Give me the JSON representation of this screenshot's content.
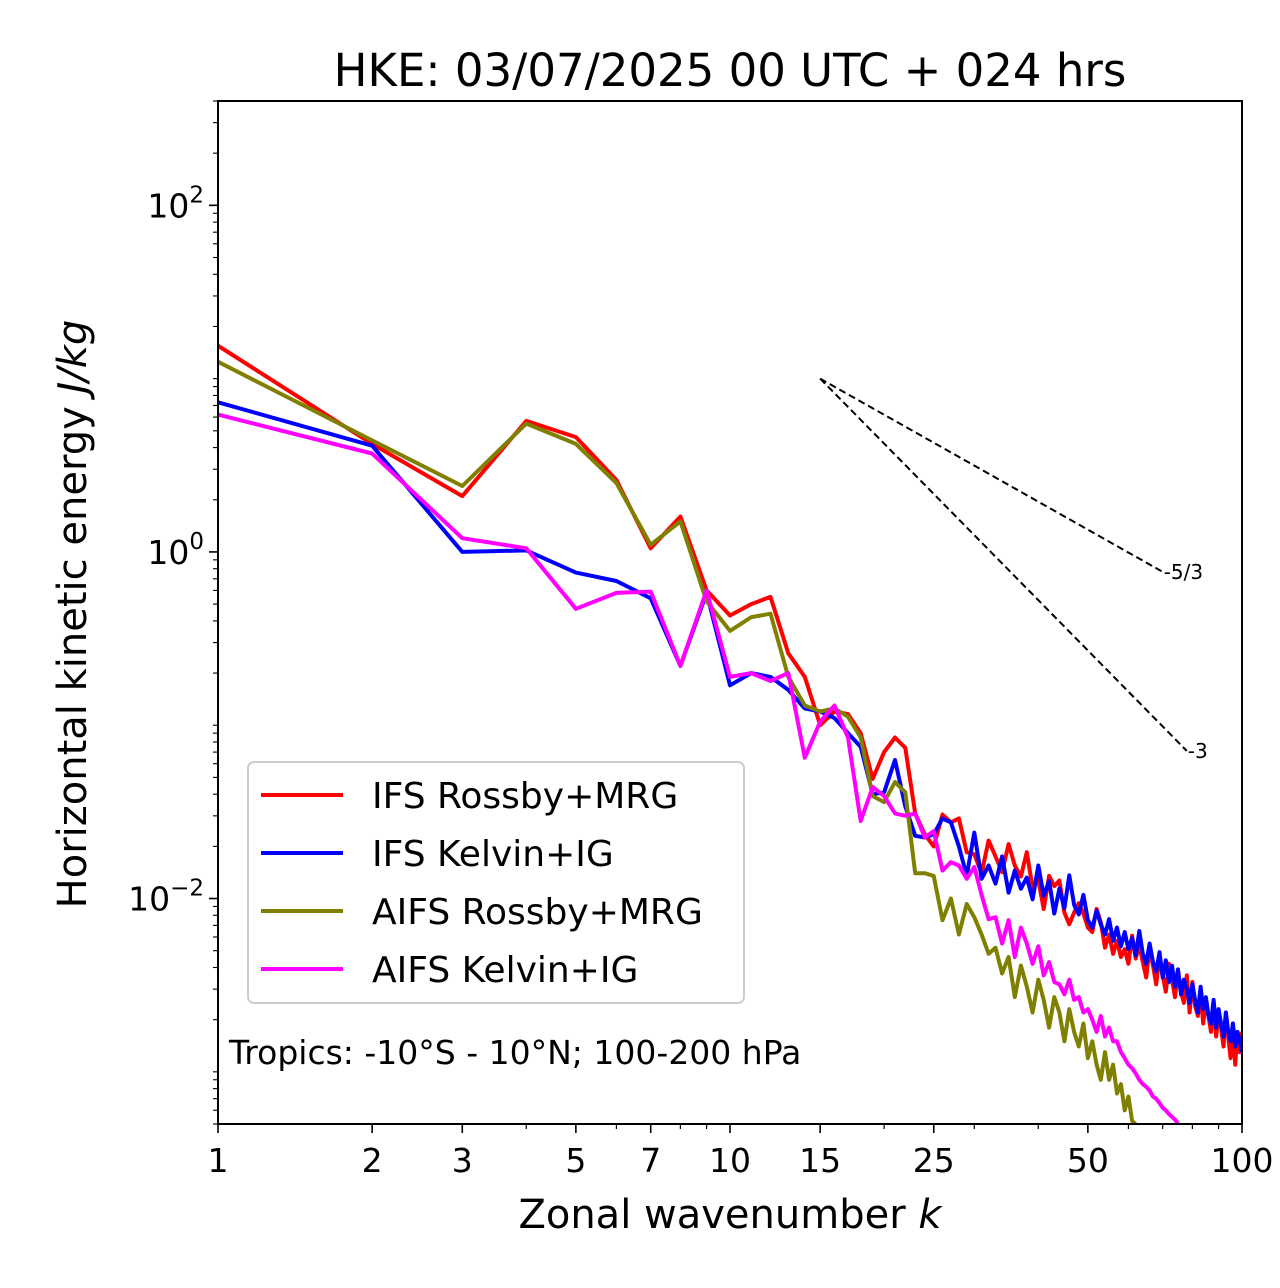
{
  "chart_data": {
    "type": "line",
    "title": "HKE: 03/07/2025 00 UTC + 024 hrs",
    "xlabel": "Zonal wavenumber k",
    "ylabel": "Horizontal kinetic energy J/kg",
    "xscale": "log",
    "yscale": "log",
    "xlim": [
      1,
      100
    ],
    "ylim": [
      0.0005,
      400
    ],
    "x_ticks": [
      1,
      2,
      3,
      5,
      7,
      10,
      15,
      25,
      50,
      100
    ],
    "x_tick_labels": [
      "1",
      "2",
      "3",
      "5",
      "7",
      "10",
      "15",
      "25",
      "50",
      "100"
    ],
    "y_ticks": [
      0.01,
      1,
      100
    ],
    "legend_position": "lower-left",
    "grid": false,
    "annotation": "Tropics: -10°S - 10°N; 100-200 hPa",
    "reference_lines": [
      {
        "label": "-5/3",
        "slope": -1.6667,
        "x_start": 15,
        "x_end": 70,
        "y_start": 10.0
      },
      {
        "label": "-3",
        "slope": -3,
        "x_start": 15,
        "x_end": 78,
        "y_start": 10.0
      }
    ],
    "series": [
      {
        "name": "IFS Rossby+MRG",
        "color": "#ff0000",
        "x": [
          1,
          2,
          3,
          4,
          5,
          6,
          7,
          8,
          9,
          10,
          11,
          12,
          13,
          14,
          15,
          16,
          17,
          18,
          19,
          20,
          21,
          22,
          23,
          24,
          25,
          26,
          27,
          28,
          29,
          30,
          31,
          32,
          33,
          34,
          35,
          36,
          37,
          38,
          39,
          40,
          41,
          42,
          43,
          44,
          45,
          46,
          47,
          48,
          49,
          50,
          51,
          52,
          53,
          54,
          55,
          56,
          57,
          58,
          59,
          60,
          61,
          62,
          63,
          64,
          65,
          66,
          67,
          68,
          69,
          70,
          71,
          72,
          73,
          74,
          75,
          76,
          77,
          78,
          79,
          80,
          81,
          82,
          83,
          84,
          85,
          86,
          87,
          88,
          89,
          90,
          91,
          92,
          93,
          94,
          95,
          96,
          97,
          98,
          99,
          100
        ],
        "y": [
          15.5,
          4.2,
          2.1,
          5.7,
          4.6,
          2.6,
          1.05,
          1.6,
          0.6,
          0.43,
          0.5,
          0.55,
          0.26,
          0.19,
          0.1,
          0.12,
          0.116,
          0.09,
          0.049,
          0.07,
          0.085,
          0.074,
          0.031,
          0.0235,
          0.02,
          0.0305,
          0.0275,
          0.029,
          0.0185,
          0.018,
          0.014,
          0.0216,
          0.0175,
          0.0142,
          0.0206,
          0.0155,
          0.0134,
          0.0185,
          0.0115,
          0.0128,
          0.0087,
          0.0135,
          0.0118,
          0.0127,
          0.0083,
          0.0071,
          0.0083,
          0.0094,
          0.0082,
          0.0068,
          0.0064,
          0.0087,
          0.0073,
          0.0052,
          0.0062,
          0.0048,
          0.0057,
          0.0046,
          0.0051,
          0.0042,
          0.0061,
          0.0045,
          0.0054,
          0.0043,
          0.0035,
          0.0052,
          0.0041,
          0.0032,
          0.0046,
          0.0036,
          0.0029,
          0.0042,
          0.0034,
          0.0027,
          0.0038,
          0.0029,
          0.0025,
          0.0036,
          0.0022,
          0.0033,
          0.0024,
          0.0021,
          0.0029,
          0.0019,
          0.0026,
          0.0021,
          0.0017,
          0.0025,
          0.0016,
          0.0021,
          0.0018,
          0.0014,
          0.0022,
          0.0016,
          0.0012,
          0.0019,
          0.0011,
          0.0017,
          0.0013,
          0.0017
        ]
      },
      {
        "name": "IFS Kelvin+IG",
        "color": "#0000ff",
        "x": [
          1,
          2,
          3,
          4,
          5,
          6,
          7,
          8,
          9,
          10,
          11,
          12,
          13,
          14,
          15,
          16,
          17,
          18,
          19,
          20,
          21,
          22,
          23,
          24,
          25,
          26,
          27,
          28,
          29,
          30,
          31,
          32,
          33,
          34,
          35,
          36,
          37,
          38,
          39,
          40,
          41,
          42,
          43,
          44,
          45,
          46,
          47,
          48,
          49,
          50,
          51,
          52,
          53,
          54,
          55,
          56,
          57,
          58,
          59,
          60,
          61,
          62,
          63,
          64,
          65,
          66,
          67,
          68,
          69,
          70,
          71,
          72,
          73,
          74,
          75,
          76,
          77,
          78,
          79,
          80,
          81,
          82,
          83,
          84,
          85,
          86,
          87,
          88,
          89,
          90,
          91,
          92,
          93,
          94,
          95,
          96,
          97,
          98,
          99,
          100
        ],
        "y": [
          7.3,
          4.1,
          1.0,
          1.02,
          0.76,
          0.68,
          0.54,
          0.22,
          0.58,
          0.17,
          0.2,
          0.19,
          0.16,
          0.125,
          0.12,
          0.11,
          0.09,
          0.075,
          0.04,
          0.041,
          0.063,
          0.034,
          0.023,
          0.0225,
          0.0235,
          0.029,
          0.0275,
          0.02,
          0.0135,
          0.024,
          0.013,
          0.0155,
          0.0122,
          0.0175,
          0.0108,
          0.0145,
          0.0114,
          0.0132,
          0.0099,
          0.0155,
          0.0104,
          0.0126,
          0.0082,
          0.0114,
          0.0088,
          0.0136,
          0.0092,
          0.0081,
          0.0105,
          0.0075,
          0.0068,
          0.0085,
          0.0071,
          0.0062,
          0.0076,
          0.0057,
          0.0068,
          0.0053,
          0.0064,
          0.0051,
          0.0059,
          0.0047,
          0.0065,
          0.0048,
          0.0042,
          0.0055,
          0.0043,
          0.0038,
          0.0049,
          0.0035,
          0.0044,
          0.0033,
          0.0041,
          0.0031,
          0.0039,
          0.0028,
          0.0034,
          0.003,
          0.0025,
          0.0032,
          0.0026,
          0.0022,
          0.0031,
          0.0023,
          0.0027,
          0.0021,
          0.0019,
          0.0026,
          0.0018,
          0.0023,
          0.0019,
          0.0016,
          0.0022,
          0.0017,
          0.0015,
          0.0019,
          0.0014,
          0.0017,
          0.0015,
          0.0013
        ]
      },
      {
        "name": "AIFS Rossby+MRG",
        "color": "#808000",
        "x": [
          1,
          2,
          3,
          4,
          5,
          6,
          7,
          8,
          9,
          10,
          11,
          12,
          13,
          14,
          15,
          16,
          17,
          18,
          19,
          20,
          21,
          22,
          23,
          24,
          25,
          26,
          27,
          28,
          29,
          30,
          31,
          32,
          33,
          34,
          35,
          36,
          37,
          38,
          39,
          40,
          41,
          42,
          43,
          44,
          45,
          46,
          47,
          48,
          49,
          50,
          51,
          52,
          53,
          54,
          55,
          56,
          57,
          58,
          59,
          60,
          61,
          62
        ],
        "y": [
          12.5,
          4.4,
          2.4,
          5.5,
          4.2,
          2.5,
          1.1,
          1.5,
          0.52,
          0.35,
          0.42,
          0.44,
          0.19,
          0.13,
          0.12,
          0.125,
          0.112,
          0.085,
          0.039,
          0.036,
          0.047,
          0.041,
          0.014,
          0.014,
          0.0135,
          0.0075,
          0.01,
          0.0062,
          0.0093,
          0.0078,
          0.0062,
          0.0048,
          0.0052,
          0.0037,
          0.0046,
          0.0027,
          0.0041,
          0.0031,
          0.0022,
          0.0034,
          0.0026,
          0.0018,
          0.0027,
          0.0022,
          0.0015,
          0.0023,
          0.0017,
          0.0014,
          0.0019,
          0.0012,
          0.0015,
          0.0011,
          0.0009,
          0.0013,
          0.0009,
          0.0011,
          0.00075,
          0.00085,
          0.0006,
          0.00072,
          0.00052,
          0.0005
        ]
      },
      {
        "name": "AIFS Kelvin+IG",
        "color": "#ff00ff",
        "x": [
          1,
          2,
          3,
          4,
          5,
          6,
          7,
          8,
          9,
          10,
          11,
          12,
          13,
          14,
          15,
          16,
          17,
          18,
          19,
          20,
          21,
          22,
          23,
          24,
          25,
          26,
          27,
          28,
          29,
          30,
          31,
          32,
          33,
          34,
          35,
          36,
          37,
          38,
          39,
          40,
          41,
          42,
          43,
          44,
          45,
          46,
          47,
          48,
          49,
          50,
          51,
          52,
          53,
          54,
          55,
          56,
          57,
          58,
          59,
          60,
          61,
          62,
          63,
          64,
          65,
          66,
          67,
          68,
          69,
          70,
          71,
          72,
          73,
          74,
          75,
          76,
          77,
          78,
          79,
          80
        ],
        "y": [
          6.2,
          3.7,
          1.2,
          1.05,
          0.47,
          0.58,
          0.59,
          0.22,
          0.6,
          0.19,
          0.2,
          0.18,
          0.2,
          0.065,
          0.105,
          0.13,
          0.085,
          0.028,
          0.044,
          0.039,
          0.031,
          0.03,
          0.031,
          0.0225,
          0.0245,
          0.0145,
          0.0162,
          0.0155,
          0.013,
          0.0152,
          0.0105,
          0.0076,
          0.0078,
          0.0055,
          0.0075,
          0.0046,
          0.0068,
          0.0055,
          0.0042,
          0.0053,
          0.0036,
          0.0043,
          0.0033,
          0.0032,
          0.0028,
          0.0034,
          0.0026,
          0.0027,
          0.0022,
          0.0023,
          0.002,
          0.0017,
          0.0021,
          0.0016,
          0.0018,
          0.0015,
          0.0015,
          0.0013,
          0.0012,
          0.0011,
          0.00105,
          0.00098,
          0.0009,
          0.00085,
          0.00082,
          0.00078,
          0.00072,
          0.0007,
          0.00066,
          0.00062,
          0.0006,
          0.00057,
          0.00055,
          0.00053,
          0.0005,
          0.00048,
          0.00046,
          0.00045,
          0.00043,
          0.00042
        ]
      }
    ]
  }
}
